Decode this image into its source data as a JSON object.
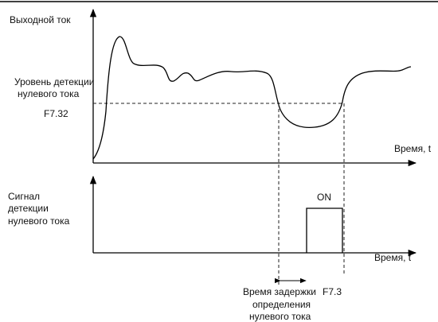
{
  "top_graph": {
    "y_label": "Выходной ток",
    "level_label": [
      "Уровень детекции",
      "нулевого тока"
    ],
    "level_param": "F7.32",
    "x_label": "Время, t"
  },
  "bottom_graph": {
    "y_label": [
      "Сигнал",
      "детекции",
      "нулевого тока"
    ],
    "pulse_label": "ON",
    "x_label": "Время, t"
  },
  "delay": {
    "label": [
      "Время задержки",
      "определения",
      "нулевого тока"
    ],
    "param": "F7.3"
  }
}
